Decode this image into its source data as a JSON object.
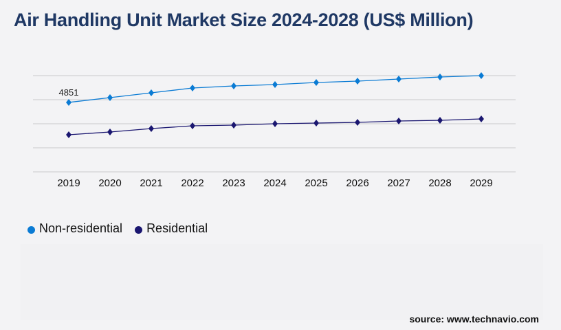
{
  "chart_data": {
    "type": "line",
    "title": "Air Handling Unit Market Size 2024-2028 (US$ Million)",
    "categories": [
      "2019",
      "2020",
      "2021",
      "2022",
      "2023",
      "2024",
      "2025",
      "2026",
      "2027",
      "2028",
      "2029"
    ],
    "series": [
      {
        "name": "Non-residential",
        "color": "#0a7bd4",
        "values": [
          4851,
          5184,
          5520,
          5856,
          6000,
          6096,
          6240,
          6336,
          6480,
          6624,
          6720
        ]
      },
      {
        "name": "Residential",
        "color": "#1a1670",
        "values": [
          2592,
          2784,
          3024,
          3216,
          3264,
          3360,
          3408,
          3456,
          3552,
          3600,
          3696
        ]
      }
    ],
    "data_labels": [
      {
        "series": "Non-residential",
        "category": "2019",
        "text": "4851"
      }
    ],
    "ylim": [
      0,
      6720
    ],
    "gridlines": 5,
    "grid": true,
    "legend": "bottom-left",
    "marker": "diamond"
  },
  "source": "source: www.technavio.com"
}
